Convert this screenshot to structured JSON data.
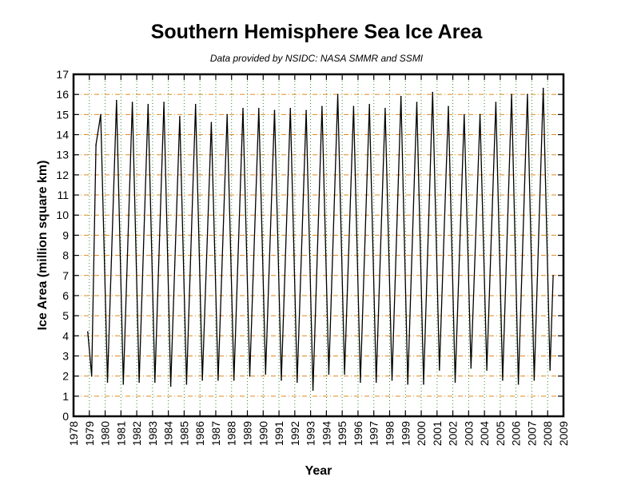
{
  "chart_data": {
    "type": "line",
    "title": "Southern Hemisphere Sea Ice Area",
    "subtitle": "Data provided by NSIDC: NASA SMMR and SSMI",
    "xlabel": "Year",
    "ylabel": "Ice Area (million square km)",
    "xlim": [
      1978,
      2009
    ],
    "ylim": [
      0,
      17
    ],
    "x_ticks": [
      1978,
      1979,
      1980,
      1981,
      1982,
      1983,
      1984,
      1985,
      1986,
      1987,
      1988,
      1989,
      1990,
      1991,
      1992,
      1993,
      1994,
      1995,
      1996,
      1997,
      1998,
      1999,
      2000,
      2001,
      2002,
      2003,
      2004,
      2005,
      2006,
      2007,
      2008,
      2009
    ],
    "y_ticks": [
      0,
      1,
      2,
      3,
      4,
      5,
      6,
      7,
      8,
      9,
      10,
      11,
      12,
      13,
      14,
      15,
      16,
      17
    ],
    "grid": true,
    "series_color": "#000000",
    "grid_x_color": "#2e8b2e",
    "grid_y_color": "#e08a1e",
    "series": [
      {
        "x": [
          1978.9,
          1979.15,
          1979.42,
          1979.72,
          1980.15,
          1980.72,
          1981.15,
          1981.72,
          1982.15,
          1982.72,
          1983.15,
          1983.72,
          1984.15,
          1984.72,
          1985.15,
          1985.72,
          1986.15,
          1986.72,
          1987.15,
          1987.72,
          1988.15,
          1988.72,
          1989.15,
          1989.72,
          1990.15,
          1990.72,
          1991.15,
          1991.72,
          1992.15,
          1992.72,
          1993.15,
          1993.72,
          1994.15,
          1994.72,
          1995.15,
          1995.72,
          1996.15,
          1996.72,
          1997.15,
          1997.72,
          1998.15,
          1998.72,
          1999.15,
          1999.72,
          2000.15,
          2000.72,
          2001.15,
          2001.72,
          2002.15,
          2002.72,
          2003.15,
          2003.72,
          2004.15,
          2004.72,
          2005.15,
          2005.72,
          2006.15,
          2006.72,
          2007.15,
          2007.72,
          2008.15,
          2008.35
        ],
        "y": [
          4.2,
          2.0,
          13.5,
          15.0,
          1.7,
          15.7,
          1.6,
          15.6,
          1.7,
          15.5,
          1.7,
          15.6,
          1.5,
          14.9,
          1.6,
          15.5,
          1.8,
          14.6,
          1.8,
          15.0,
          1.8,
          15.3,
          2.0,
          15.3,
          2.1,
          15.2,
          1.8,
          15.3,
          1.7,
          15.2,
          1.3,
          15.4,
          2.1,
          16.0,
          2.1,
          15.4,
          1.7,
          15.5,
          1.7,
          15.3,
          1.8,
          15.9,
          1.6,
          15.6,
          1.6,
          16.1,
          2.3,
          15.4,
          1.7,
          15.0,
          2.4,
          15.0,
          2.3,
          15.6,
          1.8,
          16.0,
          1.6,
          16.0,
          1.8,
          16.3,
          2.3,
          7.0
        ]
      }
    ]
  }
}
